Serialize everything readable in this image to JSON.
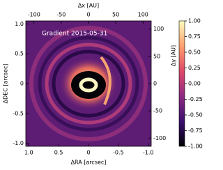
{
  "chart_data": {
    "type": "image",
    "annotation": "Gradient 2015-05-31",
    "xlabel": "ΔRA [arcsec]",
    "ylabel": "ΔDEC [arcsec]",
    "x2label": "Δx [AU]",
    "y2label": "Δy [AU]",
    "xlim": [
      1.05,
      -1.05
    ],
    "xticks": [
      {
        "value": 1,
        "label": "1.0"
      },
      0.5,
      0,
      -0.5,
      {
        "value": -1,
        "label": "-1.0"
      }
    ],
    "ylim": [
      -1.05,
      1.05
    ],
    "yticks": [
      {
        "value": -1,
        "label": "-1.0"
      },
      -0.5,
      0,
      0.5,
      {
        "value": 1,
        "label": "1.0"
      }
    ],
    "x2lim": [
      -115,
      115
    ],
    "x2ticks": [
      -100,
      -50,
      0,
      50,
      100
    ],
    "y2lim": [
      -115,
      115
    ],
    "y2ticks": [
      -100,
      -50,
      0,
      50,
      100
    ],
    "colorbar": {
      "lim": [
        -1,
        1
      ],
      "ticks": [
        {
          "value": 1,
          "label": "1.00"
        },
        0.75,
        {
          "value": 0.5,
          "label": "0.50"
        },
        0.25,
        {
          "value": 0,
          "label": "0.00"
        },
        -0.25,
        {
          "value": -0.5,
          "label": "-0.50"
        },
        -0.75,
        {
          "value": -1,
          "label": "-1.00"
        }
      ],
      "colors": [
        "#000004",
        "#3b0f70",
        "#8c2981",
        "#de4968",
        "#fe9f6d",
        "#fcfdbf"
      ]
    }
  }
}
